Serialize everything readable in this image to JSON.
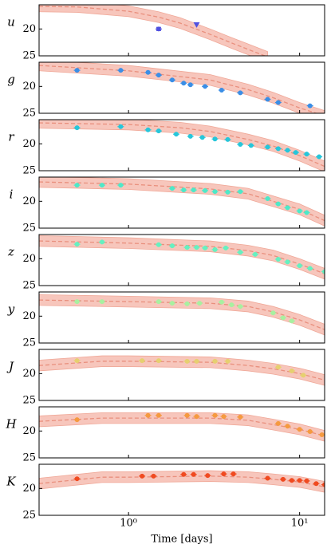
{
  "chart_data": [
    {
      "type": "line",
      "ylabel": "u",
      "xlim": [
        0.3,
        14
      ],
      "ylim": [
        25,
        15.5
      ],
      "yticks": [
        20,
        25
      ],
      "xticks": [
        1,
        10
      ],
      "band": 1,
      "band_color": "#f7c6bc",
      "model_color": "#e9907e",
      "model": {
        "x": [
          0.3,
          0.5,
          1,
          1.5,
          2,
          3,
          4,
          5,
          6.5
        ],
        "values": [
          15.8,
          15.9,
          16.7,
          17.8,
          18.9,
          21,
          22.6,
          23.8,
          25.2
        ]
      },
      "points": {
        "color": "#5050e0",
        "x": [
          1.5
        ],
        "values": [
          20.0
        ],
        "errors": [
          0.3
        ]
      },
      "limits": {
        "color": "#5050e0",
        "x": [
          2.5
        ],
        "values": [
          19.2
        ]
      }
    },
    {
      "type": "line",
      "ylabel": "g",
      "xlim": [
        0.3,
        14
      ],
      "ylim": [
        25,
        15.5
      ],
      "yticks": [
        20,
        25
      ],
      "xticks": [
        1,
        10
      ],
      "band": 1,
      "band_color": "#f7c6bc",
      "model_color": "#e9907e",
      "model": {
        "x": [
          0.3,
          1,
          3,
          5,
          7,
          10,
          14
        ],
        "values": [
          16.1,
          17.1,
          18.8,
          20.6,
          22.1,
          24,
          25.5
        ]
      },
      "points": {
        "color": "#3a8ee6",
        "x": [
          0.5,
          0.9,
          1.3,
          1.5,
          1.8,
          2.1,
          2.3,
          2.8,
          3.5,
          4.5,
          6.5,
          7.5,
          11.5
        ],
        "values": [
          17.0,
          17.0,
          17.4,
          17.9,
          18.8,
          19.4,
          19.7,
          20.0,
          20.7,
          21.2,
          22.4,
          23.0,
          23.6
        ]
      }
    },
    {
      "type": "line",
      "ylabel": "r",
      "xlim": [
        0.3,
        14
      ],
      "ylim": [
        25,
        15.5
      ],
      "yticks": [
        20,
        25
      ],
      "xticks": [
        1,
        10
      ],
      "band": 1,
      "band_color": "#f7c6bc",
      "model_color": "#e9907e",
      "model": {
        "x": [
          0.3,
          1,
          2,
          3,
          5,
          7,
          10,
          14
        ],
        "values": [
          16.1,
          16.4,
          17,
          17.7,
          19.2,
          20.4,
          22.2,
          24.2
        ]
      },
      "points": {
        "color": "#26c6da",
        "x": [
          0.5,
          0.9,
          1.3,
          1.5,
          1.9,
          2.3,
          2.7,
          3.2,
          3.8,
          4.5,
          5.2,
          6.5,
          7.5,
          8.5,
          9.5,
          11,
          13
        ],
        "values": [
          17.0,
          16.8,
          17.4,
          17.6,
          18.2,
          18.6,
          18.8,
          19.1,
          19.2,
          20.1,
          20.3,
          20.6,
          20.9,
          21.2,
          21.6,
          21.9,
          22.4
        ]
      }
    },
    {
      "type": "line",
      "ylabel": "i",
      "xlim": [
        0.3,
        14
      ],
      "ylim": [
        25,
        15.5
      ],
      "yticks": [
        20,
        25
      ],
      "xticks": [
        1,
        10
      ],
      "band": 1,
      "band_color": "#f7c6bc",
      "model_color": "#e9907e",
      "model": {
        "x": [
          0.3,
          1,
          3,
          5,
          7,
          10,
          14
        ],
        "values": [
          16.4,
          16.8,
          17.7,
          18.6,
          20,
          21.5,
          23.6
        ]
      },
      "points": {
        "color": "#4ee8c8",
        "x": [
          0.5,
          0.7,
          0.9,
          1.8,
          2.1,
          2.4,
          2.8,
          3.2,
          3.8,
          4.5,
          6.5,
          7.5,
          8.5,
          10,
          11
        ],
        "values": [
          17.0,
          17.0,
          17.0,
          17.6,
          17.9,
          17.9,
          18.0,
          18.2,
          18.3,
          18.2,
          19.5,
          20.5,
          21.2,
          21.8,
          22.1
        ]
      }
    },
    {
      "type": "line",
      "ylabel": "z",
      "xlim": [
        0.3,
        14
      ],
      "ylim": [
        25,
        15.5
      ],
      "yticks": [
        20,
        25
      ],
      "xticks": [
        1,
        10
      ],
      "band": 1,
      "band_color": "#f7c6bc",
      "model_color": "#e9907e",
      "model": {
        "x": [
          0.3,
          1,
          3,
          5,
          7,
          10,
          14
        ],
        "values": [
          16.7,
          17.1,
          17.7,
          18.5,
          19.4,
          21,
          22.8
        ]
      },
      "points": {
        "color": "#66f0c0",
        "x": [
          0.5,
          0.7,
          1.5,
          1.8,
          2.2,
          2.5,
          2.8,
          3.2,
          3.7,
          4.5,
          5.5,
          7.5,
          8.5,
          10,
          11.5,
          14
        ],
        "values": [
          17.3,
          16.9,
          17.4,
          17.6,
          17.9,
          17.9,
          18.0,
          18.3,
          18.0,
          18.8,
          19.2,
          20.1,
          20.6,
          21.3,
          21.8,
          22.4
        ]
      }
    },
    {
      "type": "line",
      "ylabel": "y",
      "xlim": [
        0.3,
        14
      ],
      "ylim": [
        25,
        15.5
      ],
      "yticks": [
        20,
        25
      ],
      "xticks": [
        1,
        10
      ],
      "band": 1,
      "band_color": "#f7c6bc",
      "model_color": "#e9907e",
      "model": {
        "x": [
          0.3,
          1,
          3,
          5,
          7,
          10,
          14
        ],
        "values": [
          17,
          17.3,
          17.6,
          18.2,
          19.2,
          20.7,
          22.5
        ]
      },
      "points": {
        "color": "#a8f0a0",
        "x": [
          0.5,
          0.7,
          1.5,
          1.8,
          2.2,
          2.6,
          3.5,
          4,
          4.5,
          7,
          8,
          9
        ],
        "values": [
          17.3,
          17.3,
          17.3,
          17.6,
          17.7,
          17.6,
          17.4,
          17.9,
          18.2,
          19.4,
          20.3,
          20.9
        ]
      }
    },
    {
      "type": "line",
      "ylabel": "J",
      "xlim": [
        0.3,
        14
      ],
      "ylim": [
        25,
        15.5
      ],
      "yticks": [
        20,
        25
      ],
      "xticks": [
        1,
        10
      ],
      "band": 1,
      "band_color": "#f7c6bc",
      "model_color": "#e9907e",
      "model": {
        "x": [
          0.3,
          0.7,
          1,
          3,
          5,
          7,
          10,
          14
        ],
        "values": [
          18.5,
          17.7,
          17.7,
          17.9,
          18.5,
          19.1,
          20,
          21.2
        ]
      },
      "points": {
        "color": "#e6d070",
        "x": [
          0.5,
          1.2,
          1.5,
          2.2,
          2.5,
          3.2,
          3.8,
          7.5,
          9,
          10.5
        ],
        "values": [
          17.6,
          17.6,
          17.6,
          17.7,
          17.7,
          17.7,
          17.7,
          18.8,
          19.5,
          20.3
        ]
      }
    },
    {
      "type": "line",
      "ylabel": "H",
      "xlim": [
        0.3,
        14
      ],
      "ylim": [
        25,
        15.5
      ],
      "yticks": [
        20,
        25
      ],
      "xticks": [
        1,
        10
      ],
      "band": 1,
      "band_color": "#f7c6bc",
      "model_color": "#e9907e",
      "model": {
        "x": [
          0.3,
          0.7,
          1,
          3,
          5,
          7,
          10,
          14
        ],
        "values": [
          18.2,
          17.6,
          17.6,
          17.6,
          18,
          18.8,
          19.7,
          20.9
        ]
      },
      "points": {
        "color": "#f59a40",
        "x": [
          0.5,
          1.3,
          1.5,
          2.2,
          2.5,
          3.2,
          3.6,
          4.5,
          7.5,
          8.5,
          10,
          11.5,
          13.5
        ],
        "values": [
          17.9,
          17.1,
          17.1,
          17.1,
          17.3,
          17.1,
          17.3,
          17.4,
          18.6,
          19.1,
          19.7,
          20.1,
          20.7
        ]
      }
    },
    {
      "type": "line",
      "ylabel": "K",
      "xlabel": "Time [days]",
      "xlim": [
        0.3,
        14
      ],
      "ylim": [
        25,
        15.5
      ],
      "yticks": [
        20,
        25
      ],
      "xticks": [
        {
          "value": 1,
          "label": "10⁰"
        },
        {
          "value": 10,
          "label": "10¹"
        }
      ],
      "band": 1,
      "band_color": "#f7c6bc",
      "model_color": "#e9907e",
      "model": {
        "x": [
          0.3,
          0.7,
          1,
          3,
          5,
          7,
          10,
          14
        ],
        "values": [
          19.1,
          17.9,
          17.9,
          17.7,
          17.9,
          18.3,
          18.8,
          19.7
        ]
      },
      "points": {
        "color": "#f04a20",
        "x": [
          0.5,
          1.2,
          1.4,
          2.1,
          2.4,
          2.9,
          3.6,
          4.1,
          6.5,
          8,
          9,
          10,
          11,
          12.5,
          14
        ],
        "values": [
          18.2,
          17.7,
          17.7,
          17.4,
          17.4,
          17.6,
          17.3,
          17.3,
          18.1,
          18.3,
          18.5,
          18.5,
          18.6,
          19.1,
          19.3
        ]
      }
    }
  ]
}
